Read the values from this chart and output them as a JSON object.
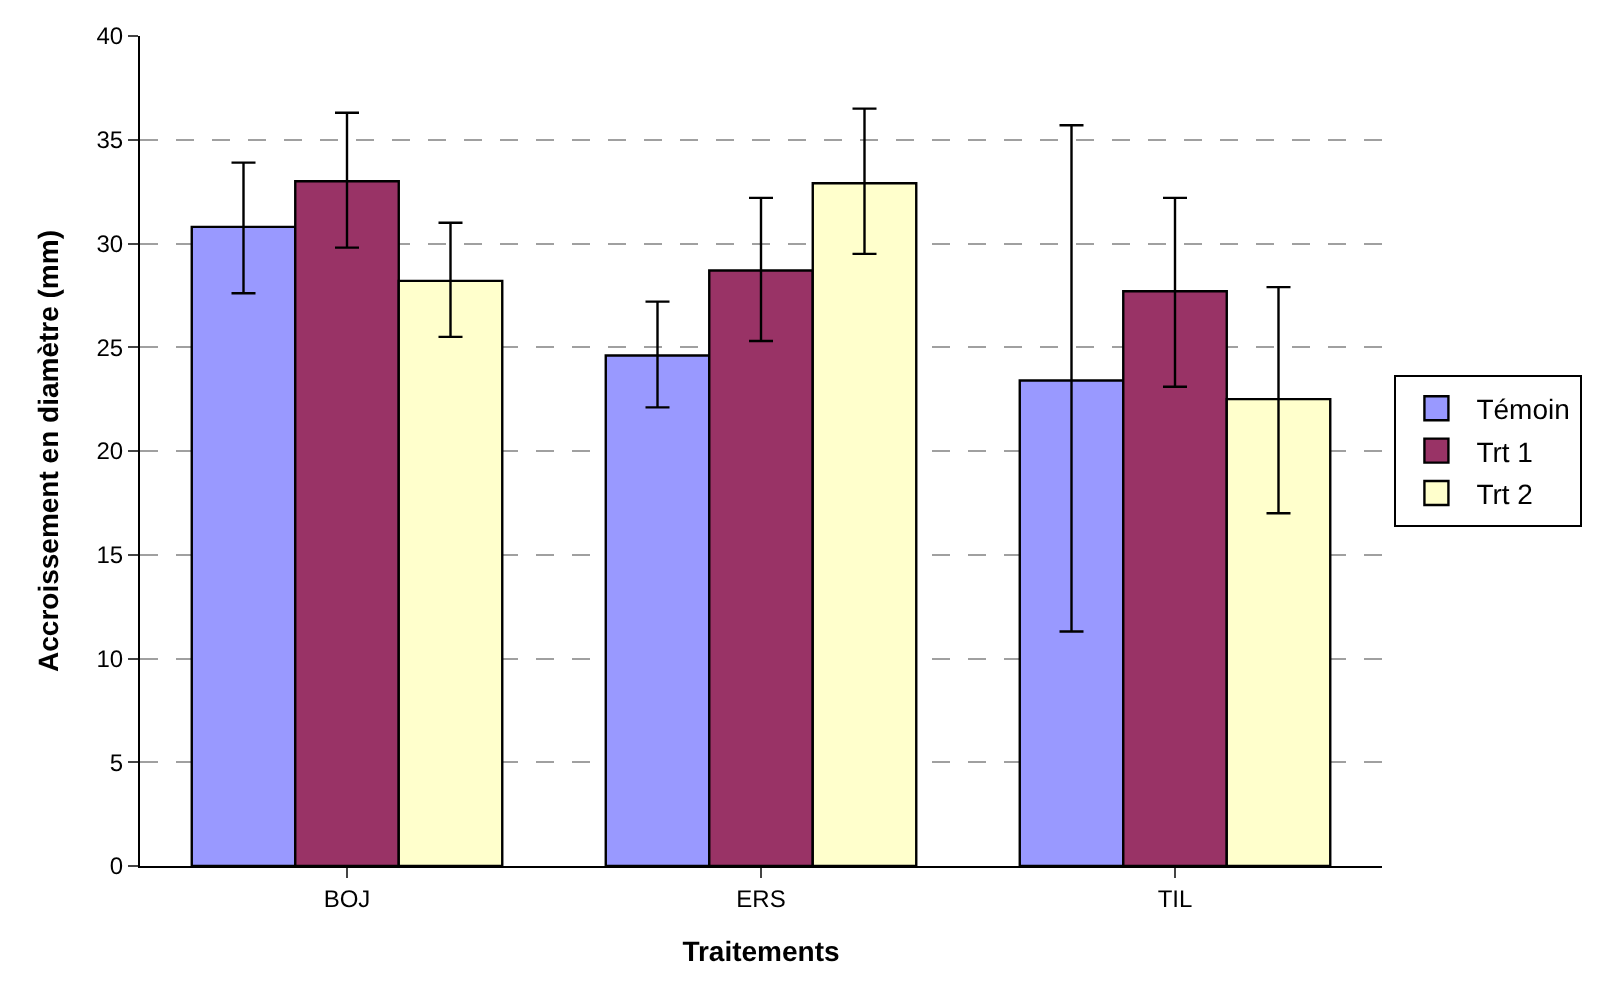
{
  "chart_data": {
    "type": "bar",
    "xlabel": "Traitements",
    "ylabel": "Accroissement en diamètre (mm)",
    "categories": [
      "BOJ",
      "ERS",
      "TIL"
    ],
    "series": [
      {
        "name": "Témoin",
        "color": "#9999ff",
        "values": [
          30.8,
          24.6,
          23.4
        ],
        "errors": [
          [
            27.6,
            33.9
          ],
          [
            22.1,
            27.2
          ],
          [
            11.3,
            35.7
          ]
        ]
      },
      {
        "name": "Trt 1",
        "color": "#993366",
        "values": [
          33.0,
          28.7,
          27.7
        ],
        "errors": [
          [
            29.8,
            36.3
          ],
          [
            25.3,
            32.2
          ],
          [
            23.1,
            32.2
          ]
        ]
      },
      {
        "name": "Trt 2",
        "color": "#ffffcc",
        "values": [
          28.2,
          32.9,
          22.5
        ],
        "errors": [
          [
            25.5,
            31.0
          ],
          [
            29.5,
            36.5
          ],
          [
            17.0,
            27.9
          ]
        ]
      }
    ],
    "ylim": [
      0,
      40
    ],
    "yticks": [
      0,
      5,
      10,
      15,
      20,
      25,
      30,
      35,
      40
    ],
    "grid": "y",
    "legend": "right"
  }
}
